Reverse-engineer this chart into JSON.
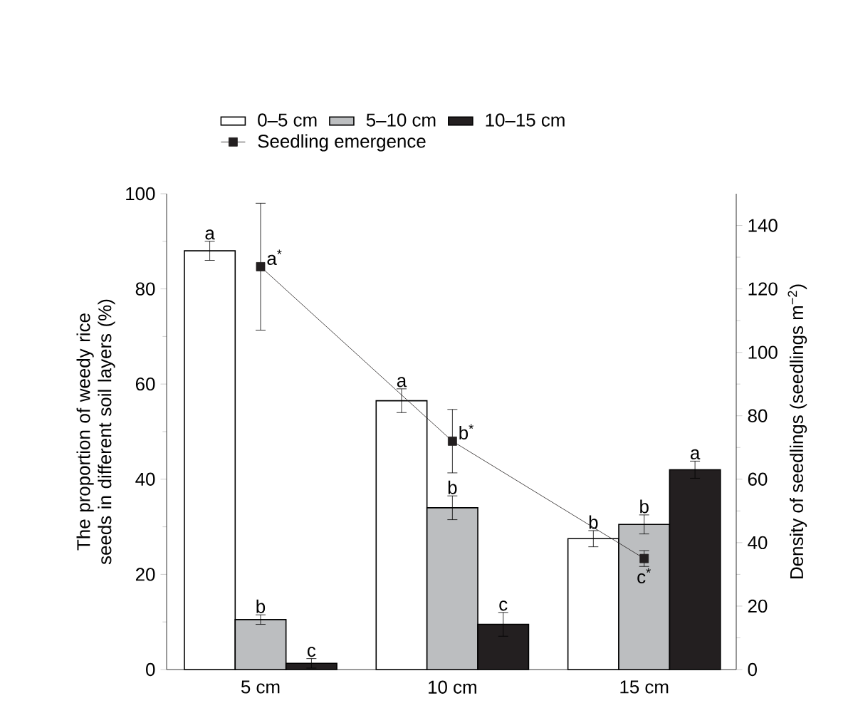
{
  "chart_data": {
    "type": "bar",
    "categories": [
      "5 cm",
      "10 cm",
      "15 cm"
    ],
    "series": [
      {
        "name": "0–5 cm",
        "color": "#ffffff",
        "values": [
          88,
          56.5,
          27.5
        ],
        "errors": [
          2,
          2.5,
          1.7
        ],
        "value_labels": [
          "a",
          "a",
          "b"
        ]
      },
      {
        "name": "5–10 cm",
        "color": "#bcbec0",
        "values": [
          10.5,
          34,
          30.5
        ],
        "errors": [
          1,
          2.5,
          2
        ],
        "value_labels": [
          "b",
          "b",
          "b"
        ]
      },
      {
        "name": "10–15 cm",
        "color": "#231f20",
        "values": [
          1.3,
          9.5,
          42
        ],
        "errors": [
          1,
          2.5,
          1.8
        ],
        "value_labels": [
          "c",
          "c",
          "a"
        ]
      },
      {
        "name": "Seedling emergence",
        "type": "line",
        "axis": "y2",
        "color": "#231f20",
        "values": [
          127,
          72,
          35
        ],
        "errors": [
          20,
          10,
          2.5
        ],
        "value_labels": [
          "a$^{*}$",
          "b$^{*}$",
          "c$^{*}$"
        ]
      }
    ],
    "ylabel": "The proportion of weedy rice seeds in different soil layers (%)",
    "y2label": "Density of seedlings (seedlings m$^{−2}$)",
    "ylim": [
      0,
      100
    ],
    "yticks": [
      0,
      20,
      40,
      60,
      80,
      100
    ],
    "y2lim": [
      0,
      150
    ],
    "y2ticks": [
      0,
      20,
      40,
      60,
      80,
      100,
      120,
      140
    ],
    "legend": "top",
    "marker": "square",
    "line_style": "solid",
    "grid": false
  }
}
